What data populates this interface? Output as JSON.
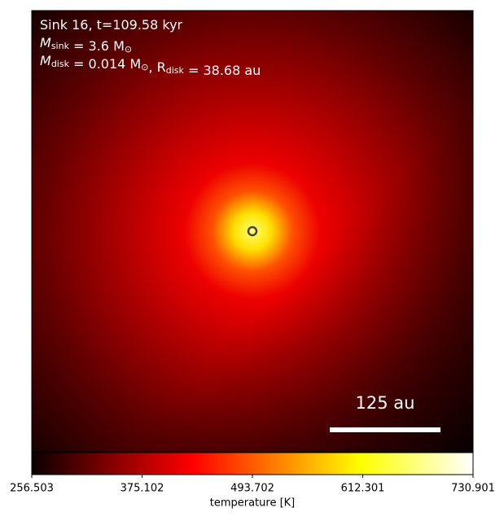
{
  "chart_data": {
    "type": "image",
    "annotations": [
      [
        {
          "text": "Sink 16, t=109.58 kyr"
        }
      ],
      [
        {
          "text": "M",
          "sub": "sink"
        },
        {
          "text": " = 3.6 M",
          "sub": "⊙"
        }
      ],
      [
        {
          "text": "M",
          "sub": "disk"
        },
        {
          "text": " = 0.014 M",
          "sub": "⊙"
        },
        {
          "text": ", R",
          "sub": "disk"
        },
        {
          "text": " = 38.68 au"
        }
      ]
    ],
    "scale_bar": "125 au",
    "colorbar": {
      "label": "temperature [K]",
      "lim": [
        256.503,
        730.901
      ],
      "ticks": [
        256.503,
        375.102,
        493.702,
        612.301,
        730.901
      ],
      "colormap": "hot"
    }
  }
}
